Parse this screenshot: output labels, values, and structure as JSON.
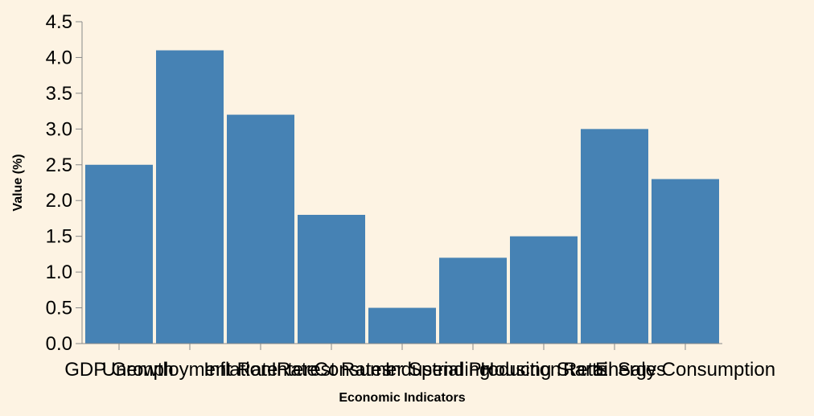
{
  "chart_data": {
    "type": "bar",
    "xlabel": "Economic Indicators",
    "ylabel": "Value (%)",
    "ylim": [
      0,
      4.5
    ],
    "yticks": [
      "0.0",
      "0.5",
      "1.0",
      "1.5",
      "2.0",
      "2.5",
      "3.0",
      "3.5",
      "4.0",
      "4.5"
    ],
    "categories": [
      "GDP Growth",
      "Unemployment Rate",
      "Inflation Rate",
      "Interest Rates",
      "Consumer Spending",
      "Industrial Production",
      "Housing Starts",
      "Retail Sales",
      "Energy Consumption"
    ],
    "values": [
      2.5,
      4.1,
      3.2,
      1.8,
      0.5,
      1.2,
      1.5,
      3.0,
      2.3
    ],
    "bar_color": "#4682b4",
    "background": "#fdf3e3",
    "grid": false
  }
}
